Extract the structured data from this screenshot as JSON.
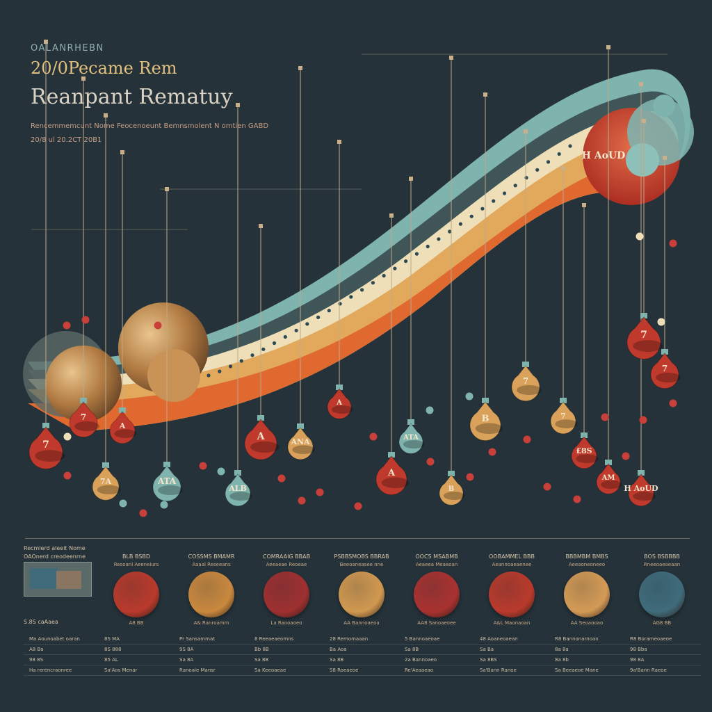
{
  "header": {
    "eyebrow": "OALANRHEBN",
    "subtitle": "20/0Pecame Rem",
    "title": "Reanpant Rematuy",
    "desc_line1": "Rencemmemcunt Nome Feocenoeunt Bemnsmolent N omtien GABD",
    "desc_line2": "20/8 ul 20.2CT 20B1"
  },
  "colors": {
    "background": "#25323a",
    "teal": "#7fb3ad",
    "cream": "#eedfb8",
    "orange": "#e0692f",
    "red": "#bf3a2c",
    "gold": "#d9a15a"
  },
  "ornaments": [
    {
      "label": "7",
      "color": "red"
    },
    {
      "label": "7",
      "color": "red"
    },
    {
      "label": "7A",
      "color": "gold"
    },
    {
      "label": "A",
      "color": "red"
    },
    {
      "label": "ATA",
      "color": "teal"
    },
    {
      "label": "A",
      "color": "red"
    },
    {
      "label": "ANA",
      "color": "gold"
    },
    {
      "label": "ALB",
      "color": "teal"
    },
    {
      "label": "A",
      "color": "red"
    },
    {
      "label": "ATA",
      "color": "teal"
    },
    {
      "label": "A",
      "color": "red"
    },
    {
      "label": "B",
      "color": "gold"
    },
    {
      "label": "B",
      "color": "gold"
    },
    {
      "label": "7",
      "color": "gold"
    },
    {
      "label": "7",
      "color": "gold"
    },
    {
      "label": "£8S",
      "color": "red"
    },
    {
      "label": "AM",
      "color": "red"
    },
    {
      "label": "H AoUD",
      "color": "red"
    }
  ],
  "panel": {
    "left_header": "Recmlerd aleeit Nome",
    "left_sub": "OAOnerd creodeenrne",
    "left_caption": "S.8S caAaea",
    "left_rows": [
      "Ma Aounoabet oaran",
      "A8 Ba",
      "98 8S",
      "Ha rerencraonree"
    ],
    "columns": [
      {
        "head": "BLB BSBD",
        "sub": "Resoanl Aeeneiurs",
        "code": "A8 BB",
        "rows": [
          "8S MA",
          "8S 888",
          "85 AL",
          "Sa'Aos Menar"
        ]
      },
      {
        "head": "COSSMS BMAMR",
        "sub": "Aaaal Reseeans",
        "code": "A& Ranroamm",
        "rows": [
          "Pr Sansammat",
          "9S 8A",
          "Sa 8A",
          "Ranoaie Mansr"
        ]
      },
      {
        "head": "COMRAAIG BBAB",
        "sub": "Aeeaeae Reoeae",
        "code": "La Raooaoeo",
        "rows": [
          "8 Reeaeaeomns",
          "Bb 8B",
          "Sa 8B",
          "Sa Keeoaeae"
        ]
      },
      {
        "head": "PSBBSMOBS BBRAB",
        "sub": "Beeoaneasee nne",
        "code": "AA Bannoaeoa",
        "rows": [
          "28 Remomaaan",
          "Ba Aoa",
          "Sa 8B",
          "S8 Roeaeoe"
        ]
      },
      {
        "head": "OOCS MSABMB",
        "sub": "Aeaeea Meaeoan",
        "code": "AA8 Sanoaeoee",
        "rows": [
          "5 Bannoaeoae",
          "Sa 8B",
          "2a Bannoaeo",
          "Re'Aeaaeao"
        ]
      },
      {
        "head": "OOBAMMEL BBB",
        "sub": "Aeannoaeaenee",
        "code": "A&L Maonaoan",
        "rows": [
          "48 Aoaneoaean",
          "Sa Ba",
          "Sa 8BS",
          "Sa'Bann Ranoe"
        ]
      },
      {
        "head": "BBBMBM BMBS",
        "sub": "Aeeaoneoneeo",
        "code": "AA Seoaooao",
        "rows": [
          "R8 Bannonarnoan",
          "8a 8a",
          "8a 8b",
          "Sa Beeaeoe Mane"
        ]
      },
      {
        "head": "BOS BSBBBB",
        "sub": "Rneeoaeoeaan",
        "code": "AG8 BB",
        "rows": [
          "R8 Borameoaeoe",
          "98 Bba",
          "98 8A",
          "9a'Bann Raeoe"
        ]
      }
    ]
  }
}
